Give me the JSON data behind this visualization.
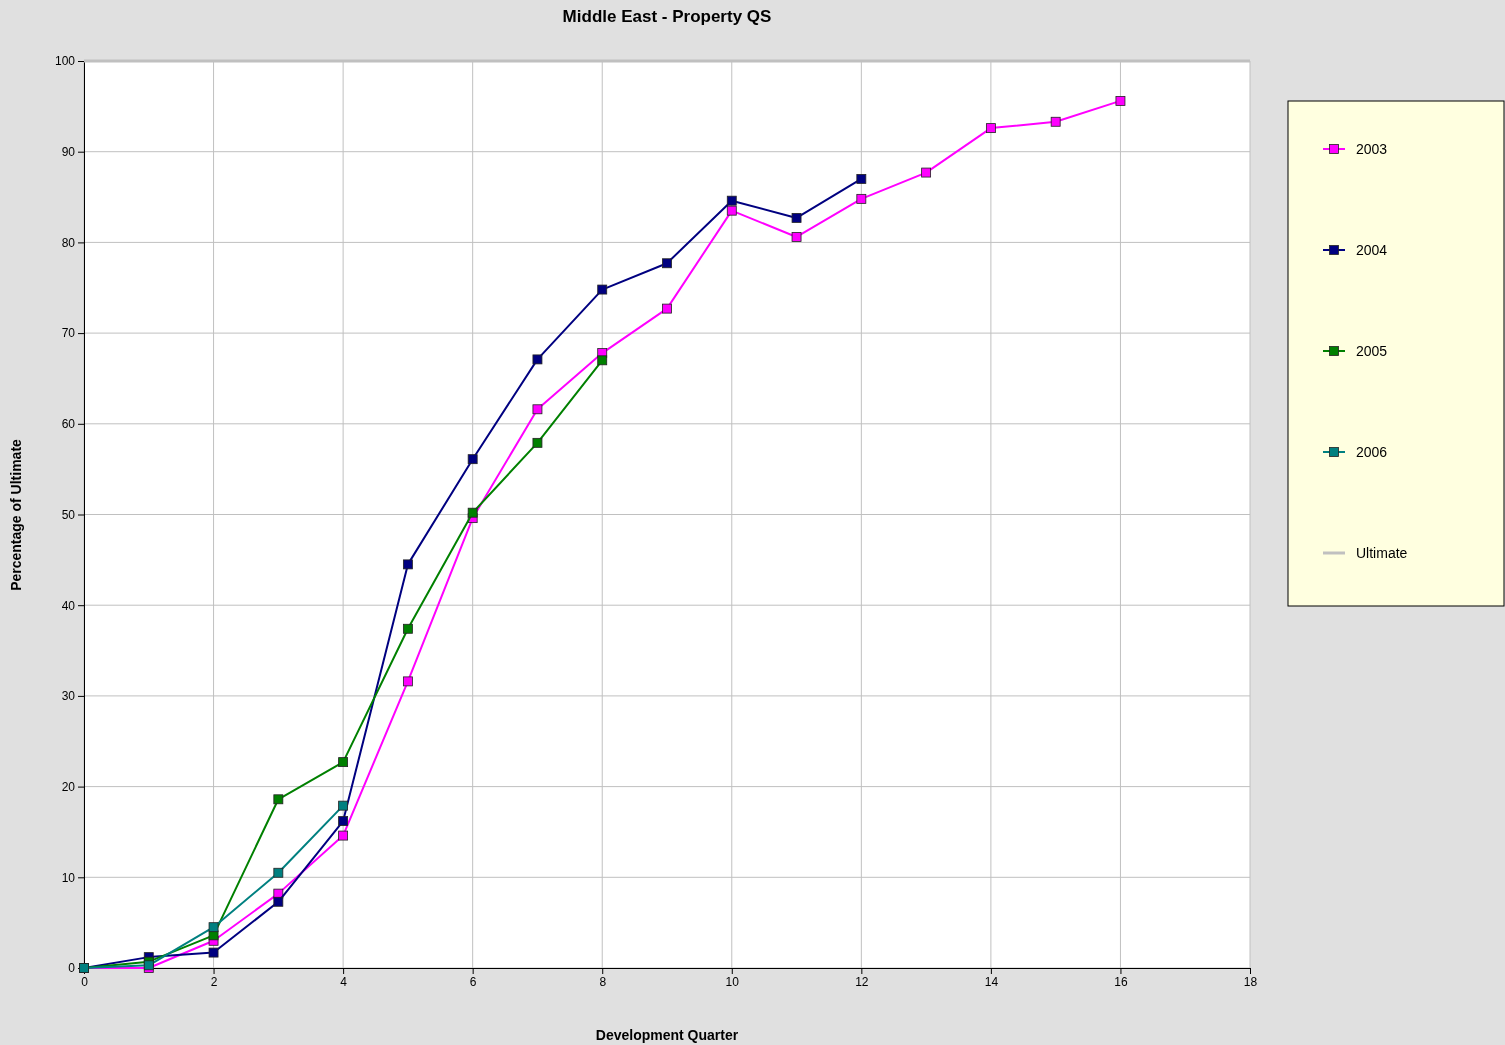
{
  "chart_data": {
    "type": "line",
    "title": "Middle East - Property QS",
    "xlabel": "Development Quarter",
    "ylabel": "Percentage of Ultimate",
    "xlim": [
      0,
      18
    ],
    "xticks": [
      0,
      2,
      4,
      6,
      8,
      10,
      12,
      14,
      16,
      18
    ],
    "ylim": [
      0,
      100
    ],
    "yticks": [
      0,
      10,
      20,
      30,
      40,
      50,
      60,
      70,
      80,
      90,
      100
    ],
    "grid": true,
    "legend": "right",
    "marker": "square",
    "line_style": "solid",
    "series": [
      {
        "name": "2003",
        "color": "#ff00ff",
        "x": [
          0,
          1,
          2,
          3,
          4,
          5,
          6,
          7,
          8,
          9,
          10,
          11,
          12,
          13,
          14,
          15,
          16
        ],
        "values": [
          0,
          0,
          3.0,
          8.2,
          14.6,
          31.6,
          49.6,
          61.6,
          67.8,
          72.7,
          83.5,
          80.6,
          84.8,
          87.7,
          92.6,
          93.3,
          95.6
        ]
      },
      {
        "name": "2004",
        "color": "#000080",
        "x": [
          0,
          1,
          2,
          3,
          4,
          5,
          6,
          7,
          8,
          9,
          10,
          11,
          12
        ],
        "values": [
          0,
          1.2,
          1.7,
          7.3,
          16.2,
          44.5,
          56.1,
          67.1,
          74.8,
          77.7,
          84.6,
          82.7,
          87.0
        ]
      },
      {
        "name": "2005",
        "color": "#008000",
        "x": [
          0,
          1,
          2,
          3,
          4,
          5,
          6,
          7,
          8
        ],
        "values": [
          0,
          0.7,
          3.6,
          18.6,
          22.7,
          37.4,
          50.2,
          57.9,
          67.0
        ]
      },
      {
        "name": "2006",
        "color": "#008080",
        "x": [
          0,
          1,
          2,
          3,
          4
        ],
        "values": [
          0,
          0.3,
          4.5,
          10.5,
          17.9
        ]
      },
      {
        "name": "Ultimate",
        "color": "#c0c0c0",
        "marker": "none",
        "x": [
          0,
          18
        ],
        "values": [
          100,
          100
        ]
      }
    ]
  }
}
